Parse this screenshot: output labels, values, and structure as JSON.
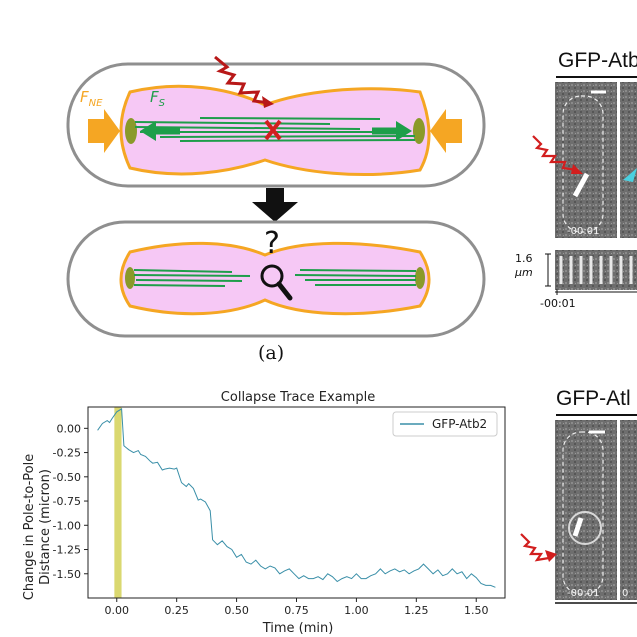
{
  "panel_a": {
    "label": "(a)",
    "force_ne": "F",
    "force_ne_sub": "NE",
    "force_s": "F",
    "force_s_sub": "S",
    "question": "?"
  },
  "panel_micro_top": {
    "title": "GFP-Atb",
    "time_stamp": "-00:01",
    "kymo_scale": "1.6",
    "kymo_unit": "μm",
    "kymo_time": "-00:01"
  },
  "panel_micro_bottom": {
    "title": "GFP-Atl",
    "time_stamp": "-00:01",
    "time_stamp_2": "0"
  },
  "colors": {
    "orange": "#f5a623",
    "green": "#1e9e4a",
    "pink": "#f6c8f5",
    "red": "#b81818",
    "olive": "#8a9a2a",
    "trace": "#3a8fa8",
    "highlight": "#d6d460"
  },
  "chart_data": {
    "type": "line",
    "title": "Collapse Trace Example",
    "xlabel": "Time (min)",
    "ylabel": "Change in Pole-to-Pole Distance  (micron)",
    "ylabel_line1": "Change in Pole-to-Pole",
    "ylabel_line2": "Distance  (micron)",
    "xlim": [
      -0.12,
      1.62
    ],
    "ylim": [
      -1.75,
      0.22
    ],
    "xticks": [
      "0.00",
      "0.25",
      "0.50",
      "0.75",
      "1.00",
      "1.25",
      "1.50"
    ],
    "yticks": [
      "0.00",
      "-0.25",
      "-0.50",
      "-0.75",
      "-1.00",
      "-1.25",
      "-1.50"
    ],
    "legend_placement": "top-right",
    "highlight_band": [
      -0.01,
      0.02
    ],
    "series": [
      {
        "name": "GFP-Atb2",
        "x": [
          -0.08,
          -0.06,
          -0.04,
          -0.03,
          -0.02,
          0.0,
          0.02,
          0.03,
          0.05,
          0.07,
          0.09,
          0.1,
          0.12,
          0.14,
          0.15,
          0.17,
          0.19,
          0.2,
          0.22,
          0.24,
          0.25,
          0.27,
          0.29,
          0.3,
          0.32,
          0.34,
          0.35,
          0.37,
          0.39,
          0.4,
          0.42,
          0.44,
          0.46,
          0.48,
          0.5,
          0.52,
          0.54,
          0.56,
          0.58,
          0.6,
          0.62,
          0.64,
          0.66,
          0.68,
          0.7,
          0.72,
          0.74,
          0.76,
          0.78,
          0.8,
          0.82,
          0.84,
          0.86,
          0.88,
          0.9,
          0.92,
          0.94,
          0.96,
          0.98,
          1.0,
          1.02,
          1.04,
          1.06,
          1.08,
          1.1,
          1.12,
          1.14,
          1.16,
          1.18,
          1.2,
          1.22,
          1.24,
          1.26,
          1.28,
          1.3,
          1.32,
          1.34,
          1.36,
          1.38,
          1.4,
          1.42,
          1.44,
          1.46,
          1.48,
          1.5,
          1.52,
          1.54,
          1.56,
          1.58
        ],
        "y": [
          -0.02,
          0.05,
          0.08,
          0.06,
          0.1,
          0.17,
          0.2,
          -0.18,
          -0.22,
          -0.25,
          -0.23,
          -0.27,
          -0.29,
          -0.34,
          -0.36,
          -0.35,
          -0.43,
          -0.42,
          -0.41,
          -0.42,
          -0.41,
          -0.56,
          -0.6,
          -0.57,
          -0.62,
          -0.74,
          -0.73,
          -0.76,
          -0.85,
          -1.15,
          -1.2,
          -1.16,
          -1.22,
          -1.25,
          -1.33,
          -1.3,
          -1.38,
          -1.4,
          -1.36,
          -1.42,
          -1.45,
          -1.42,
          -1.44,
          -1.5,
          -1.47,
          -1.45,
          -1.5,
          -1.55,
          -1.52,
          -1.55,
          -1.55,
          -1.53,
          -1.56,
          -1.5,
          -1.53,
          -1.58,
          -1.55,
          -1.53,
          -1.55,
          -1.5,
          -1.55,
          -1.55,
          -1.52,
          -1.5,
          -1.45,
          -1.5,
          -1.47,
          -1.45,
          -1.48,
          -1.46,
          -1.5,
          -1.47,
          -1.45,
          -1.4,
          -1.45,
          -1.5,
          -1.46,
          -1.52,
          -1.5,
          -1.45,
          -1.5,
          -1.48,
          -1.55,
          -1.5,
          -1.54,
          -1.6,
          -1.62,
          -1.62,
          -1.64
        ]
      }
    ]
  }
}
